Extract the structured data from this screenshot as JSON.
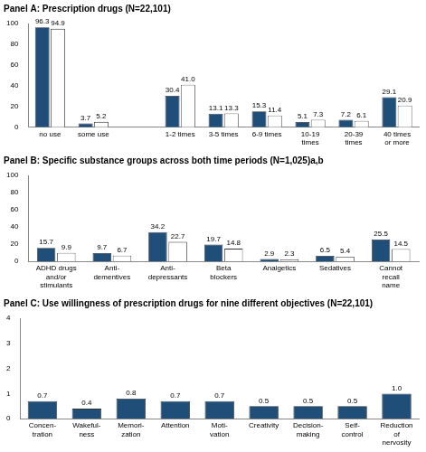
{
  "chart_data": [
    {
      "type": "bar",
      "title": "Panel A: Prescription drugs (N=22,101)",
      "categories": [
        "no use",
        "some use",
        null,
        "1-2 times",
        "3-5 times",
        "6-9 times",
        "10-19 times",
        "20-39 times",
        "40 times or more"
      ],
      "series": [
        {
          "color": "#1f4e79",
          "values": [
            96.3,
            3.7,
            null,
            30.4,
            13.1,
            15.3,
            5.1,
            7.2,
            29.1
          ],
          "value_labels": [
            "96.3",
            "3.7",
            null,
            "30.4",
            "13.1",
            "15.3",
            "5.1",
            "7.2",
            "29.1"
          ]
        },
        {
          "color": "#ffffff",
          "values": [
            94.9,
            5.2,
            null,
            41.0,
            13.3,
            11.4,
            7.3,
            6.1,
            20.9
          ],
          "value_labels": [
            "94.9",
            "5.2",
            null,
            "41.0",
            "13.3",
            "11.4",
            "7.3",
            "6.1",
            "20.9"
          ]
        }
      ],
      "ylim": [
        0,
        100
      ],
      "yticks": [
        0,
        20,
        40,
        60,
        80,
        100
      ],
      "grid": false,
      "data_labels": true
    },
    {
      "type": "bar",
      "title": "Panel B: Specific substance groups across both time periods (N=1,025)a,b",
      "categories": [
        "ADHD drugs and/or stimulants",
        "Anti-dementives",
        "Anti-depressants",
        "Beta blockers",
        "Analgetics",
        "Sedatives",
        "Cannot recall name"
      ],
      "series": [
        {
          "color": "#1f4e79",
          "values": [
            15.7,
            9.7,
            34.2,
            19.7,
            2.9,
            6.5,
            25.5
          ]
        },
        {
          "color": "#ffffff",
          "values": [
            9.9,
            6.7,
            22.7,
            14.8,
            2.3,
            5.4,
            14.5
          ]
        }
      ],
      "ylim": [
        0,
        100
      ],
      "yticks": [
        0,
        20,
        40,
        60,
        80,
        100
      ],
      "grid": false,
      "data_labels": true
    },
    {
      "type": "bar",
      "title": "Panel C: Use willingness of prescription drugs for nine different objectives (N=22,101)",
      "categories": [
        "Concen-tration",
        "Wakeful-ness",
        "Memori-zation",
        "Attention",
        "Moti-vation",
        "Creativity",
        "Decision-making",
        "Self-control",
        "Reduction of nervosity"
      ],
      "series": [
        {
          "color": "#1f4e79",
          "values": [
            0.7,
            0.4,
            0.8,
            0.7,
            0.7,
            0.5,
            0.5,
            0.5,
            1.0
          ],
          "value_labels": [
            "0.7",
            "0.4",
            "0.8",
            "0.7",
            "0.7",
            "0.5",
            "0.5",
            "0.5",
            "1.0"
          ]
        }
      ],
      "ylim": [
        0,
        4
      ],
      "yticks": [
        0,
        1,
        2,
        3,
        4
      ],
      "grid": false,
      "data_labels": true
    }
  ]
}
